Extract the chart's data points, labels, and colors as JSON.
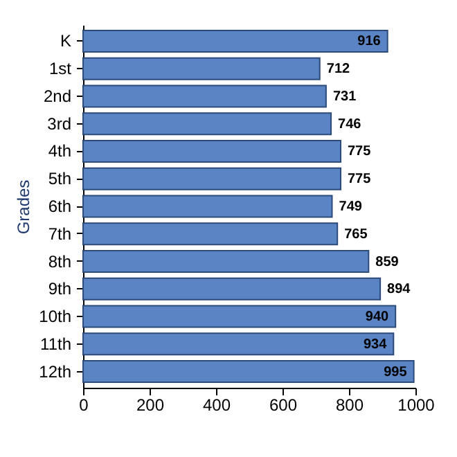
{
  "chart_data": {
    "type": "bar",
    "orientation": "horizontal",
    "ylabel": "Grades",
    "categories": [
      "K",
      "1st",
      "2nd",
      "3rd",
      "4th",
      "5th",
      "6th",
      "7th",
      "8th",
      "9th",
      "10th",
      "11th",
      "12th"
    ],
    "values": [
      916,
      712,
      731,
      746,
      775,
      775,
      749,
      765,
      859,
      894,
      940,
      934,
      995
    ],
    "color": "#5b84c4",
    "xlim": [
      0,
      1000
    ],
    "xticks": [
      0,
      200,
      400,
      600,
      800,
      1000
    ],
    "data_labels": true,
    "grid": false
  }
}
